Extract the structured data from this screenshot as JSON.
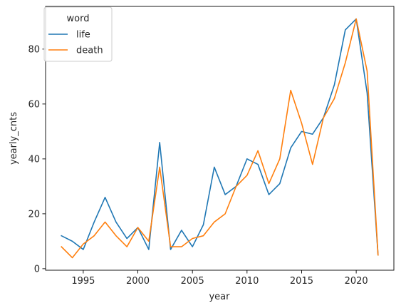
{
  "chart_data": {
    "type": "line",
    "xlabel": "year",
    "ylabel": "yearly_cnts",
    "xlim": [
      1991.55,
      2023.45
    ],
    "ylim": [
      -0.55,
      95.55
    ],
    "xticks": [
      1995,
      2000,
      2005,
      2010,
      2015,
      2020
    ],
    "yticks": [
      0,
      20,
      40,
      60,
      80
    ],
    "grid": false,
    "legend": {
      "title": "word",
      "placement": "top-left"
    },
    "x": [
      1993,
      1994,
      1995,
      1996,
      1997,
      1998,
      1999,
      2000,
      2001,
      2002,
      2003,
      2004,
      2005,
      2006,
      2007,
      2008,
      2009,
      2010,
      2011,
      2012,
      2013,
      2014,
      2015,
      2016,
      2017,
      2018,
      2019,
      2020,
      2021,
      2022
    ],
    "series": [
      {
        "name": "life",
        "color": "#1f77b4",
        "values": [
          12,
          10,
          7,
          17,
          26,
          17,
          11,
          15,
          7,
          46,
          7,
          14,
          8,
          16,
          37,
          27,
          30,
          40,
          38,
          27,
          31,
          44,
          50,
          49,
          55,
          67,
          87,
          91,
          64,
          5
        ]
      },
      {
        "name": "death",
        "color": "#ff7f0e",
        "values": [
          8,
          4,
          9,
          12,
          17,
          12,
          8,
          15,
          10,
          37,
          8,
          8,
          11,
          12,
          17,
          20,
          30,
          34,
          43,
          31,
          40,
          65,
          53,
          38,
          55,
          62,
          75,
          91,
          72,
          5
        ]
      }
    ]
  }
}
